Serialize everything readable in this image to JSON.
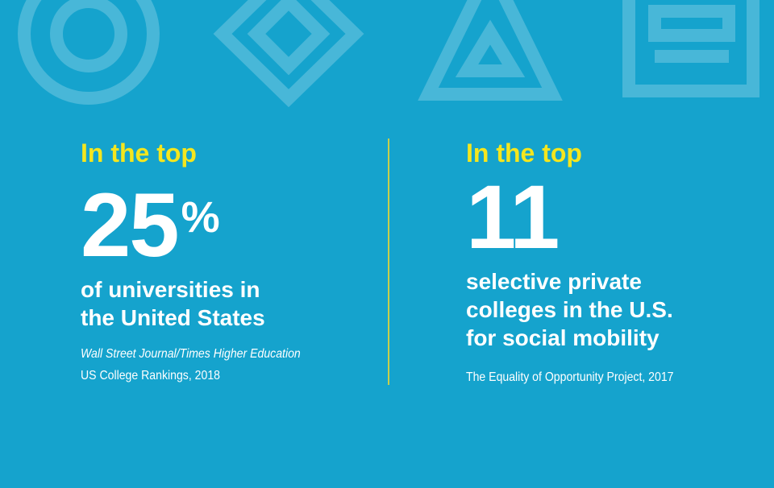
{
  "stats": [
    {
      "lead": "In the top",
      "number": 25,
      "unit": "%",
      "description": [
        "of universities in",
        "the United States"
      ],
      "source": [
        "Wall Street Journal/Times Higher Education",
        "US College Rankings, 2018"
      ]
    },
    {
      "lead": "In the top",
      "number": 11,
      "description": [
        "selective private",
        "colleges in the U.S.",
        "for social mobility"
      ],
      "source": [
        "The Equality of Opportunity Project, 2017"
      ]
    }
  ]
}
